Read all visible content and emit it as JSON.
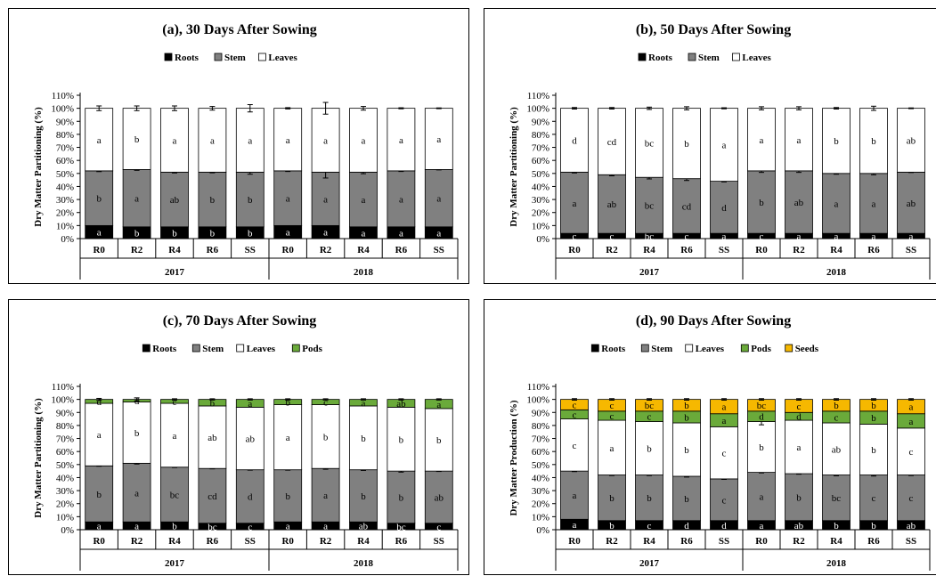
{
  "colors": {
    "Roots": "#000000",
    "Stem": "#808080",
    "Leaves": "#ffffff",
    "Pods": "#6aaa3a",
    "Seeds": "#f6b800"
  },
  "chart_data": [
    {
      "type": "bar",
      "stacked": true,
      "title": "(a), 30 Days After Sowing",
      "ylabel": "Dry Matter Partitioning (%)",
      "ylim": [
        0,
        110
      ],
      "yticks": [
        "0%",
        "10%",
        "20%",
        "30%",
        "40%",
        "50%",
        "60%",
        "70%",
        "80%",
        "90%",
        "100%",
        "110%"
      ],
      "categories": [
        "R0",
        "R2",
        "R4",
        "R6",
        "SS",
        "R0",
        "R2",
        "R4",
        "R6",
        "SS"
      ],
      "groups": [
        "2017",
        "2018"
      ],
      "legend": [
        "Roots",
        "Stem",
        "Leaves"
      ],
      "series": [
        {
          "name": "Roots",
          "values": [
            10,
            9,
            9,
            9,
            9,
            10,
            10,
            9,
            9,
            9
          ],
          "letters": [
            "a",
            "b",
            "b",
            "b",
            "b",
            "a",
            "a",
            "a",
            "a",
            "a"
          ]
        },
        {
          "name": "Stem",
          "values": [
            42,
            44,
            42,
            42,
            42,
            42,
            41,
            42,
            43,
            44
          ],
          "letters": [
            "b",
            "a",
            "ab",
            "b",
            "b",
            "a",
            "a",
            "a",
            "a",
            "a"
          ]
        },
        {
          "name": "Leaves",
          "values": [
            48,
            47,
            49,
            49,
            49,
            48,
            49,
            49,
            48,
            47
          ],
          "letters": [
            "a",
            "b",
            "a",
            "a",
            "a",
            "a",
            "a",
            "a",
            "a",
            "a"
          ]
        }
      ],
      "errors": {
        "Stem": [
          0.6,
          0.6,
          0.6,
          0.5,
          1.6,
          0.5,
          4.5,
          1.2,
          0.5,
          0.3
        ],
        "Leaves": [
          1.8,
          1.8,
          1.8,
          1.4,
          2.8,
          0.5,
          4.5,
          1.4,
          0.4,
          0.3
        ],
        "Roots": [
          1.5,
          1.2,
          1,
          1,
          1.2,
          1,
          1.2,
          0.6,
          0.8,
          0.6
        ]
      }
    },
    {
      "type": "bar",
      "stacked": true,
      "title": "(b), 50 Days After Sowing",
      "ylabel": "Dry Matter Partitioning (%)",
      "ylim": [
        0,
        110
      ],
      "yticks": [
        "0%",
        "10%",
        "20%",
        "30%",
        "40%",
        "50%",
        "60%",
        "70%",
        "80%",
        "90%",
        "100%",
        "110%"
      ],
      "categories": [
        "R0",
        "R2",
        "R4",
        "R6",
        "SS",
        "R0",
        "R2",
        "R4",
        "R6",
        "SS"
      ],
      "groups": [
        "2017",
        "2018"
      ],
      "legend": [
        "Roots",
        "Stem",
        "Leaves"
      ],
      "series": [
        {
          "name": "Roots",
          "values": [
            4,
            4,
            4,
            4,
            4,
            4,
            4,
            4,
            4,
            4
          ],
          "letters": [
            "c",
            "c",
            "bc",
            "c",
            "a",
            "c",
            "a",
            "a",
            "a",
            "a"
          ]
        },
        {
          "name": "Stem",
          "values": [
            47,
            45,
            43,
            42,
            40,
            48,
            48,
            46,
            46,
            47
          ],
          "letters": [
            "a",
            "ab",
            "bc",
            "cd",
            "d",
            "b",
            "ab",
            "a",
            "a",
            "ab"
          ]
        },
        {
          "name": "Leaves",
          "values": [
            49,
            51,
            53,
            54,
            56,
            48,
            48,
            50,
            50,
            49
          ],
          "letters": [
            "d",
            "cd",
            "bc",
            "b",
            "a",
            "a",
            "a",
            "b",
            "b",
            "ab"
          ]
        }
      ],
      "errors": {
        "Stem": [
          0.6,
          0.8,
          1.2,
          1.4,
          0.5,
          1.2,
          1.2,
          0.6,
          1.0,
          0.3
        ],
        "Leaves": [
          0.6,
          0.6,
          0.9,
          1.2,
          0.4,
          1.2,
          1.2,
          0.6,
          1.6,
          0.3
        ],
        "Roots": [
          0.5,
          0.5,
          0.5,
          0.5,
          0.5,
          0.5,
          0.5,
          0.5,
          0.5,
          0.5
        ]
      }
    },
    {
      "type": "bar",
      "stacked": true,
      "title": "(c), 70 Days After Sowing",
      "ylabel": "Dry Matter Partitioning (%)",
      "ylim": [
        0,
        110
      ],
      "yticks": [
        "0%",
        "10%",
        "20%",
        "30%",
        "40%",
        "50%",
        "60%",
        "70%",
        "80%",
        "90%",
        "100%",
        "110%"
      ],
      "categories": [
        "R0",
        "R2",
        "R4",
        "R6",
        "SS",
        "R0",
        "R2",
        "R4",
        "R6",
        "SS"
      ],
      "groups": [
        "2017",
        "2018"
      ],
      "legend": [
        "Roots",
        "Stem",
        "Leaves",
        "Pods"
      ],
      "series": [
        {
          "name": "Roots",
          "values": [
            6,
            6,
            6,
            5,
            5,
            6,
            6,
            6,
            5,
            5
          ],
          "letters": [
            "a",
            "a",
            "b",
            "bc",
            "c",
            "a",
            "a",
            "ab",
            "bc",
            "c"
          ]
        },
        {
          "name": "Stem",
          "values": [
            43,
            45,
            42,
            42,
            41,
            40,
            41,
            40,
            40,
            40
          ],
          "letters": [
            "b",
            "a",
            "bc",
            "cd",
            "d",
            "b",
            "a",
            "b",
            "b",
            "ab"
          ]
        },
        {
          "name": "Leaves",
          "values": [
            48,
            47,
            49,
            48,
            48,
            50,
            49,
            49,
            49,
            48
          ],
          "letters": [
            "a",
            "b",
            "a",
            "ab",
            "ab",
            "a",
            "b",
            "b",
            "b",
            "b"
          ]
        },
        {
          "name": "Pods",
          "values": [
            3,
            2,
            3,
            5,
            6,
            4,
            4,
            5,
            6,
            7
          ],
          "letters": [
            "d",
            "d",
            "c",
            "b",
            "a",
            "b",
            "c",
            "a",
            "ab",
            "a"
          ]
        }
      ],
      "errors": {
        "Stem": [
          0.3,
          0.6,
          0.3,
          0.3,
          0.3,
          0.3,
          0.6,
          0.5,
          0.8,
          0.3
        ],
        "Pods": [
          0.8,
          1.2,
          0.5,
          0.5,
          0.5,
          0.5,
          0.5,
          0.5,
          0.5,
          0.5
        ],
        "Roots": [
          0.4,
          0.4,
          0.4,
          0.4,
          0.4,
          0.4,
          0.4,
          0.4,
          0.4,
          0.4
        ]
      }
    },
    {
      "type": "bar",
      "stacked": true,
      "title": "(d), 90 Days After Sowing",
      "ylabel": "Dry Matter Production (%)",
      "ylim": [
        0,
        110
      ],
      "yticks": [
        "0%",
        "10%",
        "20%",
        "30%",
        "40%",
        "50%",
        "60%",
        "70%",
        "80%",
        "90%",
        "100%",
        "110%"
      ],
      "categories": [
        "R0",
        "R2",
        "R4",
        "R6",
        "SS",
        "R0",
        "R2",
        "R4",
        "R6",
        "SS"
      ],
      "groups": [
        "2017",
        "2018"
      ],
      "legend": [
        "Roots",
        "Stem",
        "Leaves",
        "Pods",
        "Seeds"
      ],
      "series": [
        {
          "name": "Roots",
          "values": [
            8,
            7,
            7,
            7,
            7,
            7,
            7,
            7,
            7,
            7
          ],
          "letters": [
            "a",
            "b",
            "c",
            "d",
            "d",
            "a",
            "ab",
            "b",
            "b",
            "ab"
          ]
        },
        {
          "name": "Stem",
          "values": [
            37,
            35,
            35,
            34,
            32,
            37,
            36,
            35,
            35,
            35
          ],
          "letters": [
            "a",
            "b",
            "b",
            "b",
            "c",
            "a",
            "b",
            "bc",
            "c",
            "c"
          ]
        },
        {
          "name": "Leaves",
          "values": [
            40,
            42,
            41,
            41,
            40,
            39,
            41,
            40,
            39,
            36
          ],
          "letters": [
            "c",
            "a",
            "b",
            "b",
            "c",
            "b",
            "a",
            "ab",
            "b",
            "c"
          ]
        },
        {
          "name": "Pods",
          "values": [
            7,
            7,
            8,
            9,
            10,
            8,
            6,
            9,
            10,
            11
          ],
          "letters": [
            "c",
            "c",
            "c",
            "b",
            "a",
            "d",
            "d",
            "c",
            "b",
            "a"
          ]
        },
        {
          "name": "Seeds",
          "values": [
            8,
            9,
            9,
            9,
            11,
            9,
            10,
            9,
            9,
            11
          ],
          "letters": [
            "c",
            "c",
            "bc",
            "b",
            "a",
            "bc",
            "c",
            "b",
            "b",
            "a"
          ]
        }
      ],
      "errors": {
        "Stem": [
          0.4,
          0.4,
          0.4,
          0.6,
          0.4,
          0.4,
          0.4,
          0.6,
          0.8,
          0.4
        ],
        "Leaves": [
          0,
          0,
          0,
          0,
          0,
          2.5,
          0,
          0,
          0,
          0
        ],
        "Seeds": [
          0.6,
          0.6,
          0.6,
          0.6,
          0.6,
          0.6,
          0.6,
          0.6,
          0.6,
          0.6
        ],
        "Roots": [
          0.4,
          0.4,
          0.4,
          0.4,
          0.4,
          0.4,
          0.4,
          0.4,
          0.4,
          0.4
        ]
      }
    }
  ]
}
